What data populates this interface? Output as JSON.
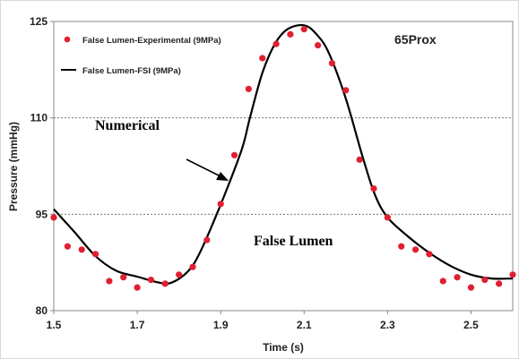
{
  "chart_data": {
    "type": "line",
    "xlabel": "Time (s)",
    "ylabel": "Pressure (mmHg)",
    "xlim": [
      1.5,
      2.6
    ],
    "ylim": [
      80,
      125
    ],
    "x_ticks": [
      "1.5",
      "1.7",
      "1.9",
      "2.1",
      "2.3",
      "2.5"
    ],
    "y_ticks": [
      "80",
      "95",
      "110",
      "125"
    ],
    "gridlines": "horizontal dotted at 95 and 110",
    "legend_position": "top-left",
    "series": [
      {
        "name": "False Lumen-Experimental (9MPa)",
        "style": "markers",
        "color": "#e02030",
        "x": [
          1.5,
          1.533,
          1.567,
          1.6,
          1.633,
          1.667,
          1.7,
          1.733,
          1.767,
          1.8,
          1.833,
          1.867,
          1.9,
          1.933,
          1.967,
          2.0,
          2.033,
          2.067,
          2.1,
          2.133,
          2.167,
          2.2,
          2.233,
          2.267,
          2.3,
          2.333,
          2.367,
          2.4,
          2.433,
          2.467,
          2.5,
          2.533,
          2.567,
          2.6
        ],
        "y": [
          94.5,
          90.0,
          89.5,
          88.8,
          84.6,
          85.2,
          83.6,
          84.8,
          84.2,
          85.6,
          86.8,
          91.0,
          96.6,
          104.2,
          114.5,
          119.3,
          121.5,
          123.0,
          123.8,
          121.3,
          118.5,
          114.3,
          103.5,
          99.0,
          94.5,
          90.0,
          89.5,
          88.8,
          84.6,
          85.2,
          83.6,
          84.8,
          84.2,
          85.6
        ]
      },
      {
        "name": "False Lumen-FSI (9MPa)",
        "style": "line",
        "color": "#000000",
        "x": [
          1.5,
          1.55,
          1.6,
          1.65,
          1.7,
          1.75,
          1.78,
          1.82,
          1.85,
          1.9,
          1.95,
          1.97,
          2.0,
          2.03,
          2.06,
          2.1,
          2.13,
          2.16,
          2.2,
          2.24,
          2.27,
          2.3,
          2.35,
          2.4,
          2.45,
          2.5,
          2.55,
          2.6
        ],
        "y": [
          95.8,
          92.2,
          88.5,
          86.2,
          85.3,
          84.4,
          84.3,
          86.0,
          89.0,
          96.5,
          105.0,
          110.0,
          117.0,
          121.5,
          123.8,
          124.4,
          123.0,
          120.0,
          113.0,
          104.0,
          98.0,
          94.5,
          91.5,
          89.0,
          87.0,
          85.6,
          85.0,
          85.0
        ]
      }
    ],
    "annotations": [
      {
        "text": "65Prox"
      },
      {
        "text": "Numerical"
      },
      {
        "text": "False Lumen"
      }
    ]
  }
}
